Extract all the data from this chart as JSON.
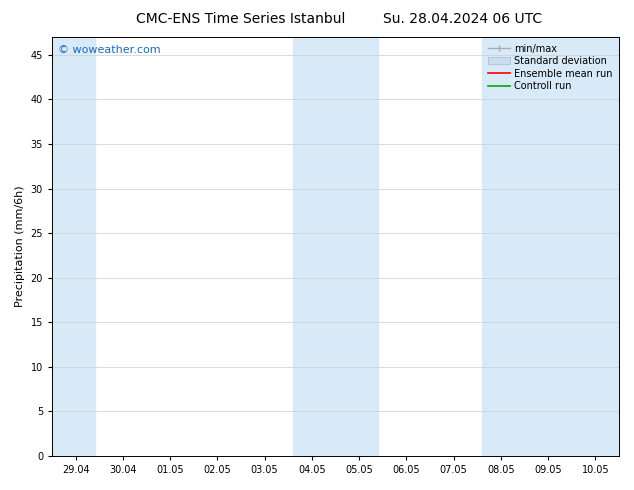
{
  "title_left": "CMC-ENS Time Series Istanbul",
  "title_right": "Su. 28.04.2024 06 UTC",
  "ylabel": "Precipitation (mm/6h)",
  "background_color": "#ffffff",
  "plot_bg_color": "#ffffff",
  "ylim": [
    0,
    47
  ],
  "yticks": [
    0,
    5,
    10,
    15,
    20,
    25,
    30,
    35,
    40,
    45
  ],
  "xtick_labels": [
    "29.04",
    "30.04",
    "01.05",
    "02.05",
    "03.05",
    "04.05",
    "05.05",
    "06.05",
    "07.05",
    "08.05",
    "09.05",
    "10.05"
  ],
  "band_color": "#d8eaf8",
  "watermark_text": "© woweather.com",
  "watermark_color": "#1a6abf",
  "legend_labels": [
    "min/max",
    "Standard deviation",
    "Ensemble mean run",
    "Controll run"
  ],
  "legend_colors": [
    "#aaaaaa",
    "#c8ddf0",
    "#ff0000",
    "#00aa00"
  ],
  "title_fontsize": 10,
  "ylabel_fontsize": 8,
  "tick_fontsize": 7,
  "legend_fontsize": 7
}
